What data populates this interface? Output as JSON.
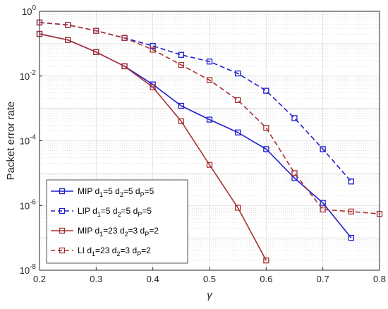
{
  "chart_data": {
    "type": "line",
    "xlabel": "γ",
    "ylabel": "Packet error rate",
    "xlim": [
      0.2,
      0.8
    ],
    "ylim": [
      1e-08,
      1
    ],
    "yscale": "log",
    "grid": true,
    "minor_grid": true,
    "legend_position": "bottom-left",
    "x_ticks": [
      "0.2",
      "0.3",
      "0.4",
      "0.5",
      "0.6",
      "0.7",
      "0.8"
    ],
    "y_ticks": [
      {
        "base": "10",
        "exp": "0"
      },
      {
        "base": "10",
        "exp": "-2"
      },
      {
        "base": "10",
        "exp": "-4"
      },
      {
        "base": "10",
        "exp": "-6"
      },
      {
        "base": "10",
        "exp": "-8"
      }
    ],
    "series": [
      {
        "name_parts": [
          [
            "MIP d",
            ""
          ],
          [
            "1",
            "sub"
          ],
          [
            "=5 d",
            ""
          ],
          [
            "2",
            "sub"
          ],
          [
            "=5 d",
            ""
          ],
          [
            "P",
            "sub"
          ],
          [
            "=5",
            ""
          ]
        ],
        "color": "#1f1fcc",
        "dash": "solid",
        "x": [
          0.2,
          0.25,
          0.3,
          0.35,
          0.4,
          0.45,
          0.5,
          0.55,
          0.6,
          0.65,
          0.7,
          0.75
        ],
        "y": [
          0.2,
          0.13,
          0.055,
          0.02,
          0.0055,
          0.0012,
          0.00045,
          0.00018,
          5.5e-05,
          7e-06,
          1.2e-06,
          1e-07
        ]
      },
      {
        "name_parts": [
          [
            "LIP  d",
            ""
          ],
          [
            "1",
            "sub"
          ],
          [
            "=5 d",
            ""
          ],
          [
            "2",
            "sub"
          ],
          [
            "=5 d",
            ""
          ],
          [
            "P",
            "sub"
          ],
          [
            "=5",
            ""
          ]
        ],
        "color": "#1f1fcc",
        "dash": "dashed",
        "x": [
          0.2,
          0.25,
          0.3,
          0.35,
          0.4,
          0.45,
          0.5,
          0.55,
          0.6,
          0.65,
          0.7,
          0.75
        ],
        "y": [
          0.45,
          0.38,
          0.25,
          0.15,
          0.085,
          0.045,
          0.028,
          0.012,
          0.0035,
          0.0005,
          5.5e-05,
          5.5e-06
        ]
      },
      {
        "name_parts": [
          [
            "MIP d",
            ""
          ],
          [
            "1",
            "sub"
          ],
          [
            "=23 d",
            ""
          ],
          [
            "2",
            "sub"
          ],
          [
            "=3 d",
            ""
          ],
          [
            "P",
            "sub"
          ],
          [
            "=2",
            ""
          ]
        ],
        "color": "#a83232",
        "dash": "solid",
        "x": [
          0.2,
          0.25,
          0.3,
          0.35,
          0.4,
          0.45,
          0.5,
          0.55,
          0.6
        ],
        "y": [
          0.2,
          0.13,
          0.055,
          0.02,
          0.0045,
          0.0004,
          1.8e-05,
          8.5e-07,
          2e-08
        ]
      },
      {
        "name_parts": [
          [
            "LI  d",
            ""
          ],
          [
            "1",
            "sub"
          ],
          [
            "=23 d",
            ""
          ],
          [
            "2",
            "sub"
          ],
          [
            "=3 d",
            ""
          ],
          [
            "P",
            "sub"
          ],
          [
            "=2",
            ""
          ]
        ],
        "color": "#a83232",
        "dash": "dashed",
        "x": [
          0.2,
          0.25,
          0.3,
          0.35,
          0.4,
          0.45,
          0.5,
          0.55,
          0.6,
          0.65,
          0.7,
          0.75,
          0.8
        ],
        "y": [
          0.45,
          0.38,
          0.25,
          0.15,
          0.065,
          0.022,
          0.0075,
          0.0018,
          0.00025,
          1e-05,
          7.5e-07,
          6.5e-07,
          5.5e-07
        ]
      }
    ]
  }
}
